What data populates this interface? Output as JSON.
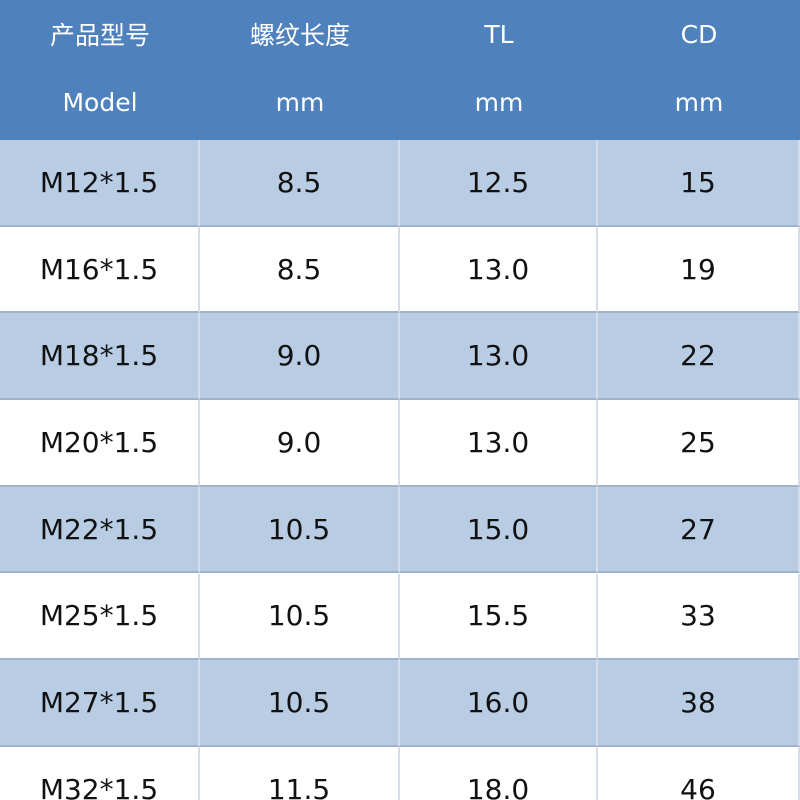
{
  "table": {
    "header": [
      [
        "产品型号",
        "螺纹长度",
        "TL",
        "CD"
      ],
      [
        "Model",
        "mm",
        "mm",
        "mm"
      ]
    ],
    "rows": [
      [
        "M12*1.5",
        "8.5",
        "12.5",
        "15"
      ],
      [
        "M16*1.5",
        "8.5",
        "13.0",
        "19"
      ],
      [
        "M18*1.5",
        "9.0",
        "13.0",
        "22"
      ],
      [
        "M20*1.5",
        "9.0",
        "13.0",
        "25"
      ],
      [
        "M22*1.5",
        "10.5",
        "15.0",
        "27"
      ],
      [
        "M25*1.5",
        "10.5",
        "15.5",
        "33"
      ],
      [
        "M27*1.5",
        "10.5",
        "16.0",
        "38"
      ],
      [
        "M32*1.5",
        "11.5",
        "18.0",
        "46"
      ]
    ]
  }
}
